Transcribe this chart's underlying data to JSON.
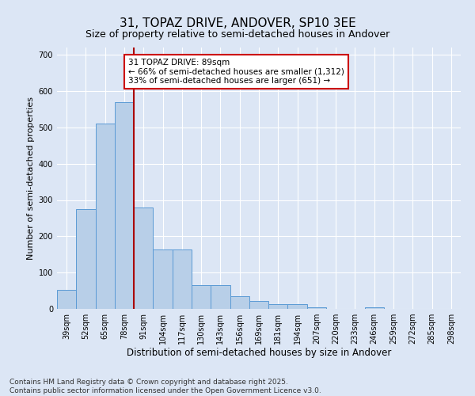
{
  "title1": "31, TOPAZ DRIVE, ANDOVER, SP10 3EE",
  "title2": "Size of property relative to semi-detached houses in Andover",
  "xlabel": "Distribution of semi-detached houses by size in Andover",
  "ylabel": "Number of semi-detached properties",
  "categories": [
    "39sqm",
    "52sqm",
    "65sqm",
    "78sqm",
    "91sqm",
    "104sqm",
    "117sqm",
    "130sqm",
    "143sqm",
    "156sqm",
    "169sqm",
    "181sqm",
    "194sqm",
    "207sqm",
    "220sqm",
    "233sqm",
    "246sqm",
    "259sqm",
    "272sqm",
    "285sqm",
    "298sqm"
  ],
  "values": [
    52,
    275,
    510,
    570,
    280,
    163,
    163,
    65,
    65,
    35,
    22,
    13,
    13,
    5,
    0,
    0,
    5,
    0,
    0,
    0,
    0
  ],
  "bar_color": "#b8cfe8",
  "bar_edge_color": "#5b9bd5",
  "vline_color": "#aa0000",
  "annotation_text": "31 TOPAZ DRIVE: 89sqm\n← 66% of semi-detached houses are smaller (1,312)\n33% of semi-detached houses are larger (651) →",
  "annotation_box_color": "#ffffff",
  "annotation_box_edgecolor": "#cc0000",
  "ylim": [
    0,
    720
  ],
  "yticks": [
    0,
    100,
    200,
    300,
    400,
    500,
    600,
    700
  ],
  "background_color": "#dce6f5",
  "plot_bg_color": "#dce6f5",
  "footer_text": "Contains HM Land Registry data © Crown copyright and database right 2025.\nContains public sector information licensed under the Open Government Licence v3.0.",
  "title1_fontsize": 11,
  "title2_fontsize": 9,
  "xlabel_fontsize": 8.5,
  "ylabel_fontsize": 8,
  "tick_fontsize": 7,
  "annotation_fontsize": 7.5,
  "footer_fontsize": 6.5
}
